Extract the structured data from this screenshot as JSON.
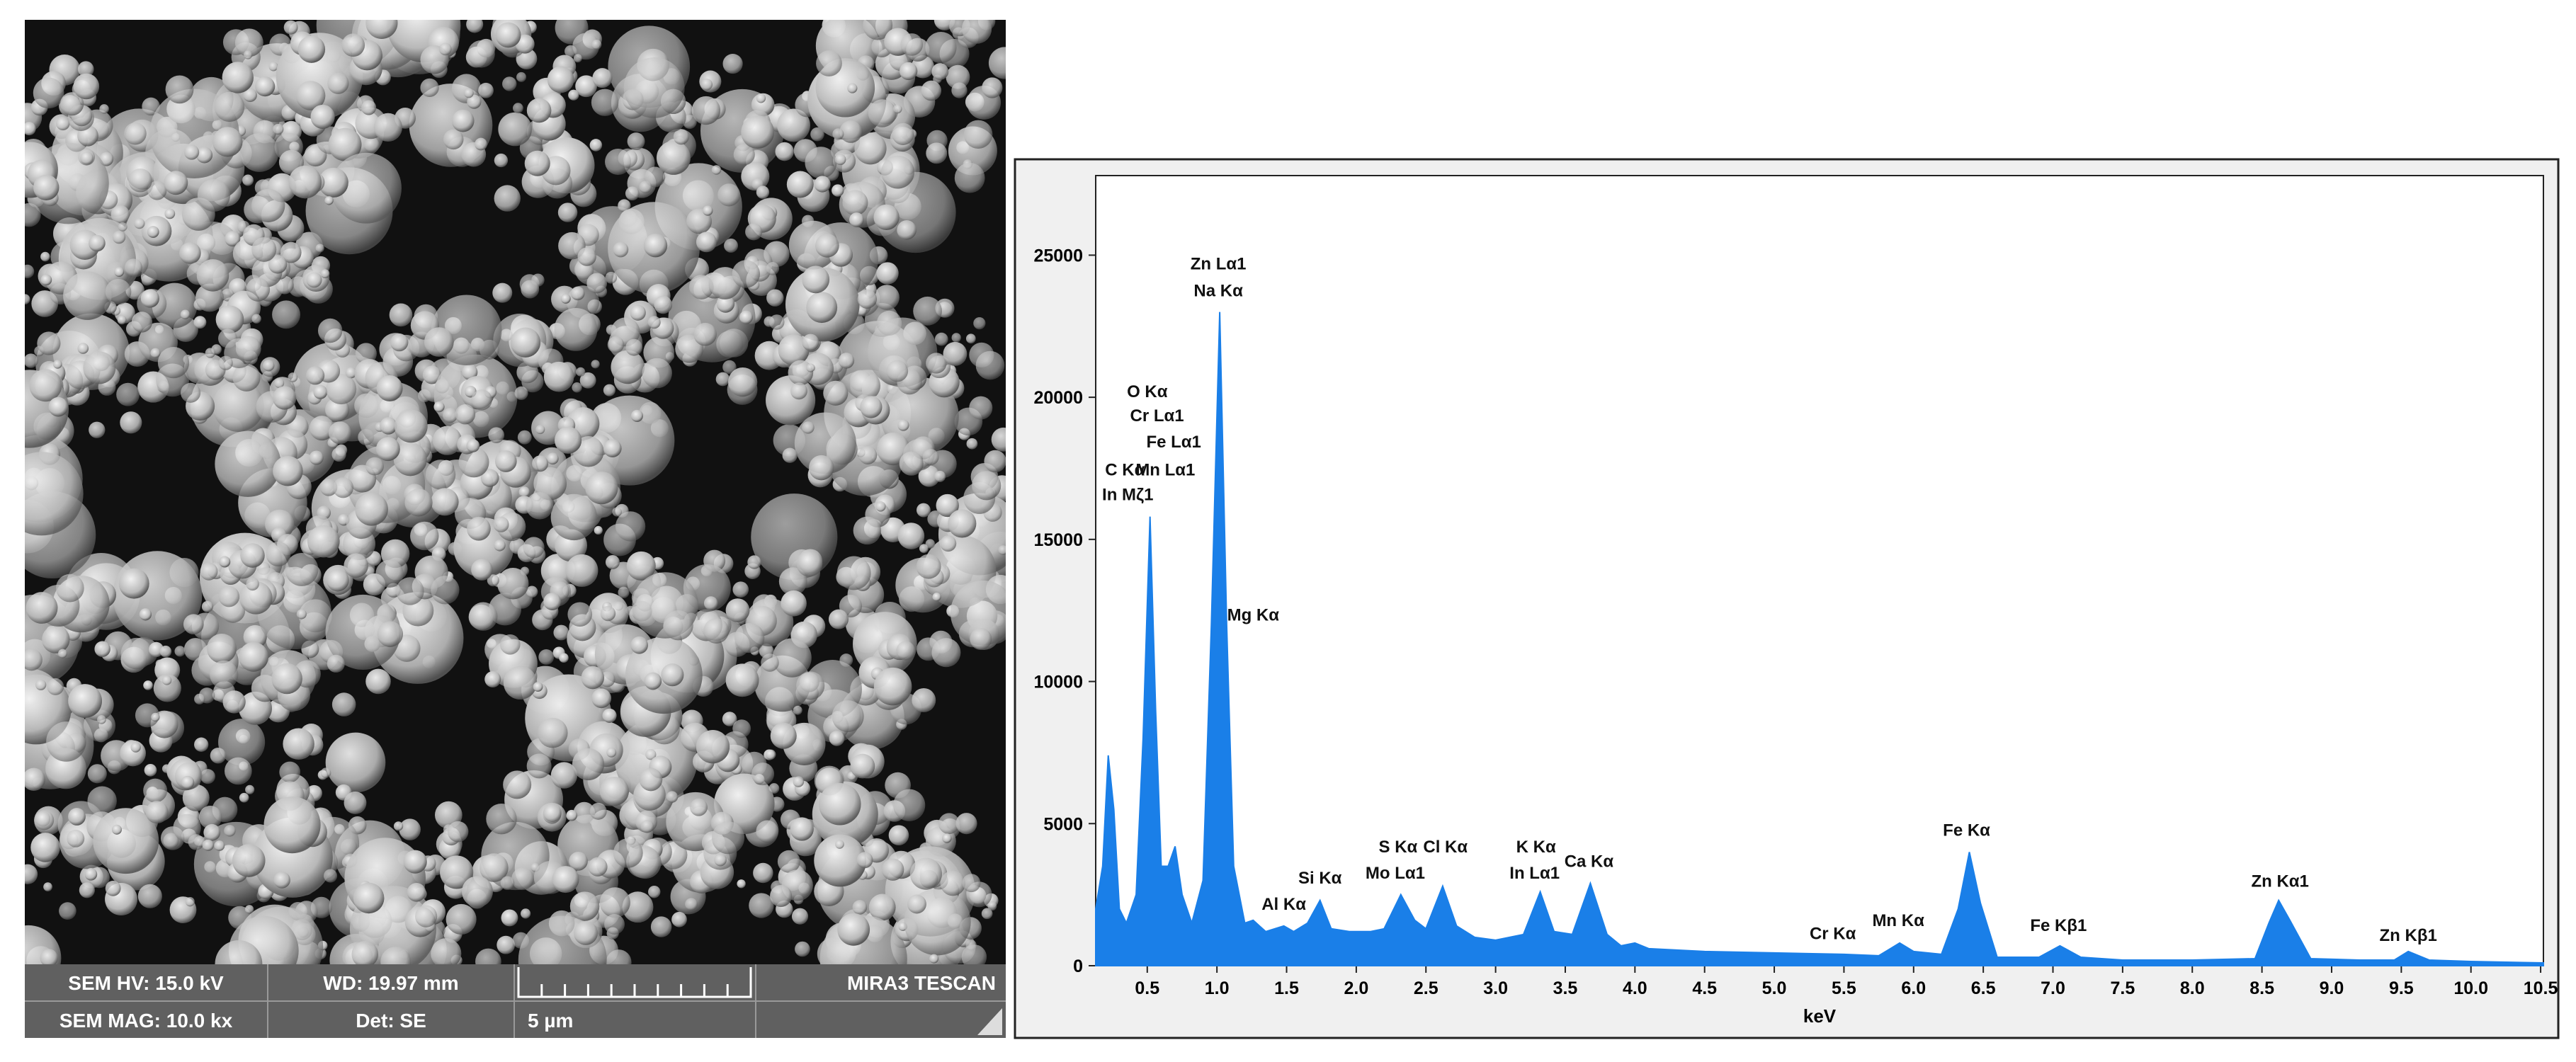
{
  "sem_info": {
    "hv": "SEM HV: 15.0 kV",
    "wd": "WD: 19.97 mm",
    "brand": "MIRA3 TESCAN",
    "mag": "SEM MAG: 10.0 kx",
    "det": "Det: SE",
    "scale": "5 µm"
  },
  "chart_data": {
    "type": "area",
    "x_label": "keV",
    "color": "#1a7fe8",
    "xlim": [
      0.13,
      10.52
    ],
    "ylim": [
      0,
      27800
    ],
    "xticks": [
      0.5,
      {
        "value": 1,
        "label": "1.0"
      },
      1.5,
      {
        "value": 2,
        "label": "2.0"
      },
      2.5,
      {
        "value": 3,
        "label": "3.0"
      },
      3.5,
      {
        "value": 4,
        "label": "4.0"
      },
      4.5,
      {
        "value": 5,
        "label": "5.0"
      },
      5.5,
      {
        "value": 6,
        "label": "6.0"
      },
      6.5,
      {
        "value": 7,
        "label": "7.0"
      },
      7.5,
      {
        "value": 8,
        "label": "8.0"
      },
      8.5,
      {
        "value": 9,
        "label": "9.0"
      },
      9.5,
      {
        "value": 10,
        "label": "10.0"
      },
      10.5
    ],
    "yticks": [
      0,
      5000,
      10000,
      15000,
      20000,
      25000
    ],
    "x": [
      0.13,
      0.18,
      0.22,
      0.26,
      0.3,
      0.35,
      0.42,
      0.47,
      0.52,
      0.56,
      0.6,
      0.65,
      0.7,
      0.75,
      0.82,
      0.9,
      0.96,
      1.02,
      1.07,
      1.12,
      1.2,
      1.26,
      1.35,
      1.48,
      1.55,
      1.65,
      1.74,
      1.82,
      1.95,
      2.1,
      2.2,
      2.32,
      2.42,
      2.5,
      2.62,
      2.72,
      2.85,
      3.0,
      3.2,
      3.32,
      3.42,
      3.55,
      3.68,
      3.8,
      3.9,
      4.0,
      4.1,
      4.5,
      5.0,
      5.5,
      5.75,
      5.9,
      6.0,
      6.2,
      6.32,
      6.4,
      6.48,
      6.6,
      6.9,
      7.05,
      7.2,
      7.5,
      8.0,
      8.45,
      8.55,
      8.62,
      8.7,
      8.85,
      9.2,
      9.45,
      9.55,
      9.7,
      10.0,
      10.52
    ],
    "values": [
      2000,
      3500,
      7400,
      5500,
      2000,
      1500,
      2500,
      8000,
      15800,
      9000,
      3500,
      3500,
      4200,
      2500,
      1500,
      3000,
      12000,
      23000,
      12000,
      3500,
      1500,
      1600,
      1200,
      1400,
      1200,
      1500,
      2300,
      1300,
      1200,
      1200,
      1300,
      2500,
      1600,
      1300,
      2800,
      1400,
      1000,
      900,
      1100,
      2600,
      1200,
      1100,
      2900,
      1100,
      700,
      800,
      600,
      500,
      450,
      400,
      350,
      800,
      500,
      400,
      2000,
      4000,
      2200,
      300,
      300,
      700,
      300,
      200,
      200,
      250,
      1500,
      2300,
      1600,
      250,
      200,
      200,
      500,
      200,
      150,
      100
    ],
    "annotations": [
      {
        "text": "Zn Lα1",
        "x": 1.01,
        "y": 24500
      },
      {
        "text": "Na Kα",
        "x": 1.01,
        "y": 23550
      },
      {
        "text": "O Kα",
        "x": 0.5,
        "y": 20000
      },
      {
        "text": "Cr Lα1",
        "x": 0.57,
        "y": 19150
      },
      {
        "text": "Fe Lα1",
        "x": 0.69,
        "y": 18230
      },
      {
        "text": "C Kα",
        "x": 0.34,
        "y": 17250
      },
      {
        "text": "Mn Lα1",
        "x": 0.63,
        "y": 17250
      },
      {
        "text": "In Mζ1",
        "x": 0.36,
        "y": 16380
      },
      {
        "text": "Mg Kα",
        "x": 1.26,
        "y": 12150
      },
      {
        "text": "Al Kα",
        "x": 1.48,
        "y": 1970
      },
      {
        "text": "Si Kα",
        "x": 1.74,
        "y": 2890
      },
      {
        "text": "S Kα",
        "x": 2.3,
        "y": 3990
      },
      {
        "text": "Cl Kα",
        "x": 2.64,
        "y": 3990
      },
      {
        "text": "Mo Lα1",
        "x": 2.28,
        "y": 3070
      },
      {
        "text": "K Kα",
        "x": 3.29,
        "y": 3990
      },
      {
        "text": "In Lα1",
        "x": 3.28,
        "y": 3070
      },
      {
        "text": "Ca Kα",
        "x": 3.67,
        "y": 3470
      },
      {
        "text": "Cr Kα",
        "x": 5.42,
        "y": 930
      },
      {
        "text": "Mn Kα",
        "x": 5.89,
        "y": 1390
      },
      {
        "text": "Fe Kα",
        "x": 6.38,
        "y": 4570
      },
      {
        "text": "Fe Kβ1",
        "x": 7.04,
        "y": 1220
      },
      {
        "text": "Zn Kα1",
        "x": 8.63,
        "y": 2780
      },
      {
        "text": "Zn Kβ1",
        "x": 9.55,
        "y": 870
      }
    ]
  }
}
